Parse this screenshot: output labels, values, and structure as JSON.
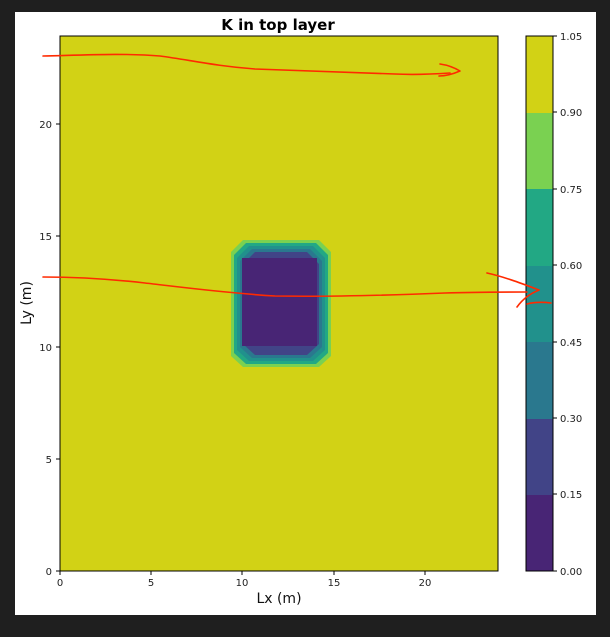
{
  "chart_data": {
    "type": "heatmap",
    "title": "K in top layer",
    "xlabel": "Lx (m)",
    "ylabel": "Ly (m)",
    "xlim": [
      0,
      24
    ],
    "ylim": [
      0,
      24
    ],
    "xticks": [
      "0",
      "5",
      "10",
      "15",
      "20"
    ],
    "yticks": [
      "0",
      "5",
      "10",
      "15",
      "20"
    ],
    "background_value": 1.0,
    "inclusion": {
      "x_range": [
        9.5,
        14.2
      ],
      "y_range": [
        9.5,
        14.5
      ],
      "inner_value": 0.05
    },
    "colorbar": {
      "levels": [
        "0.00",
        "0.15",
        "0.30",
        "0.45",
        "0.60",
        "0.75",
        "0.90",
        "1.05"
      ],
      "colors": [
        "#482575",
        "#414487",
        "#2a788e",
        "#21918c",
        "#22a884",
        "#7ad151",
        "#d2d215"
      ]
    },
    "annotations": {
      "color": "#ff2a00",
      "description": "hand-drawn red arrows pointing right"
    }
  }
}
